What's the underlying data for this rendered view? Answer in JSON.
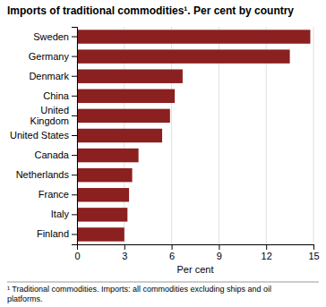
{
  "chart_data": {
    "type": "bar",
    "orientation": "horizontal",
    "title": "Imports of traditional commodities¹. Per cent by country",
    "categories": [
      "Finland",
      "Italy",
      "France",
      "Netherlands",
      "Canada",
      "United States",
      "United\nKingdom",
      "China",
      "Denmark",
      "Germany",
      "Sweden"
    ],
    "values": [
      3.0,
      3.2,
      3.3,
      3.5,
      3.9,
      5.4,
      5.9,
      6.2,
      6.7,
      13.5,
      14.8
    ],
    "color": "#8B2020",
    "xlabel": "Per cent",
    "xlim": [
      0,
      15
    ],
    "xticks": [
      0,
      3,
      6,
      9,
      12,
      15
    ],
    "grid": true,
    "annotations": [
      "¹ Traditional commodities. Imports: all commodities excluding ships and oil\nplatforms."
    ]
  }
}
